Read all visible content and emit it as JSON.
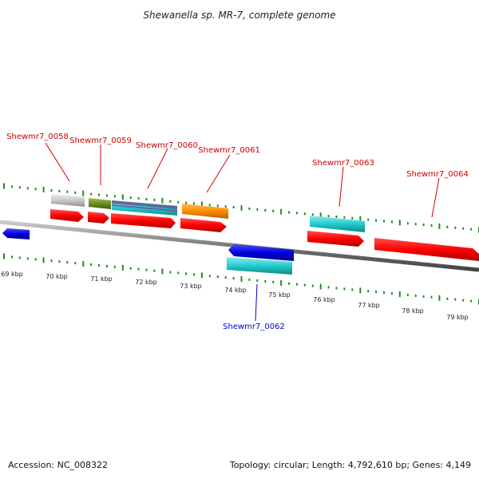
{
  "title": "Shewanella sp. MR-7, complete genome",
  "footer": {
    "accession": "Accession: NC_008322",
    "summary": "Topology: circular; Length: 4,792,610 bp; Genes: 4,149"
  },
  "ruler": {
    "ticks": [
      "69 kbp",
      "70 kbp",
      "71 kbp",
      "72 kbp",
      "73 kbp",
      "74 kbp",
      "75 kbp",
      "76 kbp",
      "77 kbp",
      "78 kbp",
      "79 kbp"
    ]
  },
  "genes": [
    {
      "name": "Shewmr7_0058",
      "strand": "+",
      "color": "#cc0000"
    },
    {
      "name": "Shewmr7_0059",
      "strand": "+",
      "color": "#cc0000"
    },
    {
      "name": "Shewmr7_0060",
      "strand": "+",
      "color": "#cc0000"
    },
    {
      "name": "Shewmr7_0061",
      "strand": "+",
      "color": "#cc0000"
    },
    {
      "name": "Shewmr7_0062",
      "strand": "-",
      "color": "#0000aa"
    },
    {
      "name": "Shewmr7_0063",
      "strand": "+",
      "color": "#cc0000"
    },
    {
      "name": "Shewmr7_0064",
      "strand": "+",
      "color": "#cc0000"
    }
  ],
  "colors": {
    "forward_gene": "#ff0000",
    "reverse_gene": "#0000dd",
    "cds_cyan": "#22cccc",
    "cds_grey": "#c8c8c8",
    "cds_olive": "#6b8e23",
    "cds_orange": "#ff8c00",
    "backbone": "#888888",
    "ticks": "#228b22"
  }
}
